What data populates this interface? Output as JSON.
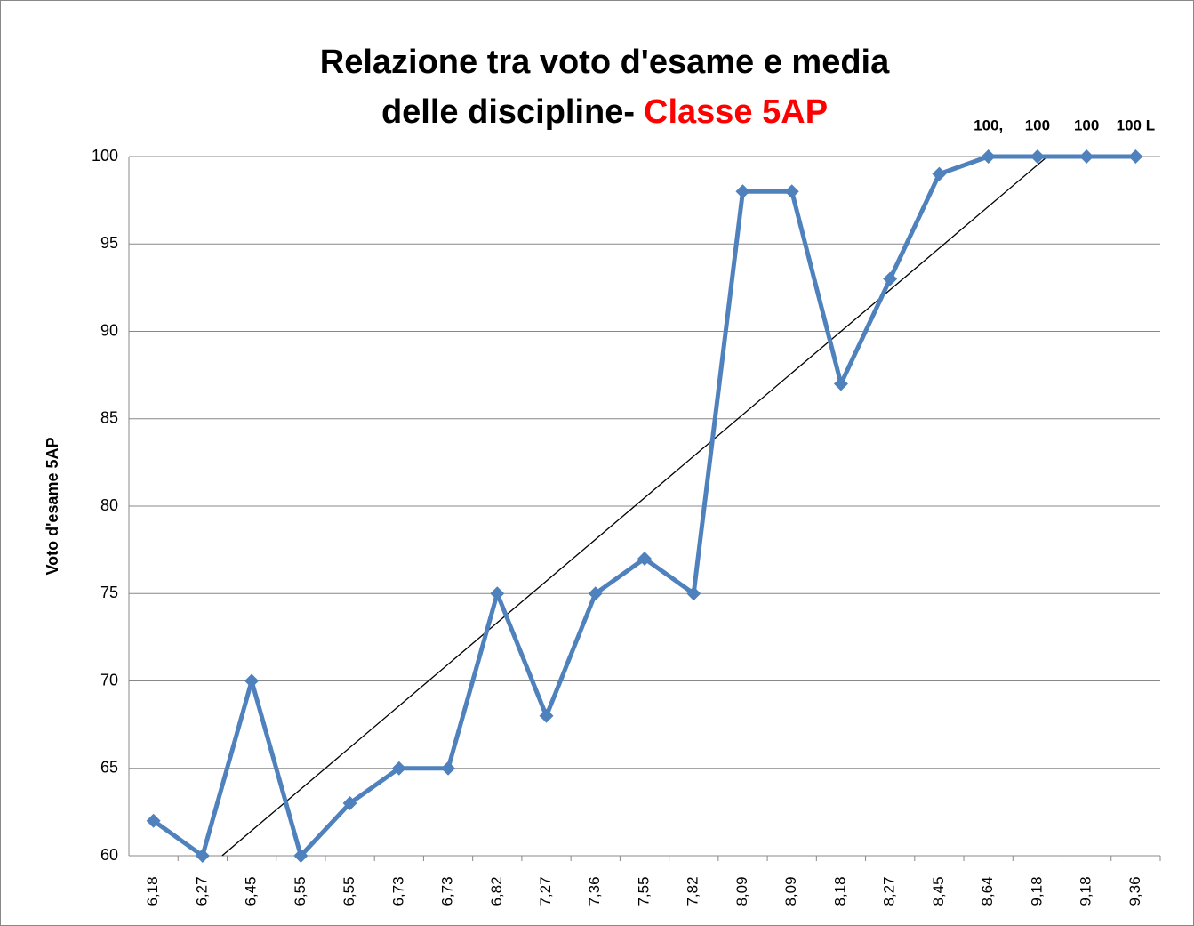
{
  "chart_data": {
    "type": "line",
    "title": [
      "Relazione tra voto d'esame e media",
      "delle discipline-"
    ],
    "title_highlight": "Classe 5AP",
    "y_label": "Voto d'esame 5AP",
    "categories": [
      "6,18",
      "6,27",
      "6,45",
      "6,55",
      "6,55",
      "6,73",
      "6,73",
      "6,82",
      "7,27",
      "7,36",
      "7,55",
      "7,82",
      "8,09",
      "8,09",
      "8,18",
      "8,27",
      "8,45",
      "8,64",
      "9,18",
      "9,18",
      "9,36"
    ],
    "series": [
      {
        "name": "Voto d'esame 5AP",
        "color": "#4f81bd",
        "values": [
          62,
          60,
          70,
          60,
          63,
          65,
          65,
          75,
          68,
          75,
          77,
          75,
          98,
          98,
          87,
          93,
          99,
          100,
          100,
          100,
          100
        ],
        "value_labels": [
          null,
          null,
          null,
          null,
          null,
          null,
          null,
          null,
          null,
          null,
          null,
          null,
          null,
          null,
          null,
          null,
          null,
          "100,",
          "100",
          "100",
          "100 L"
        ]
      }
    ],
    "ylim": [
      60,
      100
    ],
    "yticks": [
      60,
      65,
      70,
      75,
      80,
      85,
      90,
      95,
      100
    ],
    "grid": true,
    "trendline": true
  }
}
